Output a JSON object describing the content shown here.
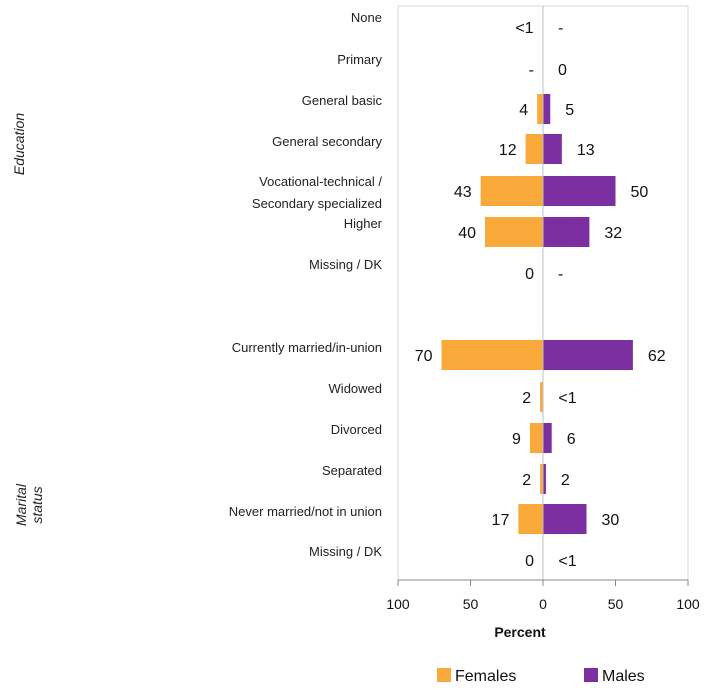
{
  "chart_data": {
    "type": "bar",
    "orientation": "horizontal-diverging",
    "xlabel": "Percent",
    "xlim": [
      -100,
      100
    ],
    "xticks": [
      {
        "value": -100,
        "label": "100"
      },
      {
        "value": -50,
        "label": "50"
      },
      {
        "value": 0,
        "label": "0"
      },
      {
        "value": 50,
        "label": "50"
      },
      {
        "value": 100,
        "label": "100"
      }
    ],
    "legend_position": "bottom-right",
    "series": [
      {
        "name": "Females",
        "color": "#F9A93A",
        "side": "left"
      },
      {
        "name": "Males",
        "color": "#7B2FA0",
        "side": "right"
      }
    ],
    "groups": [
      {
        "name": "Education",
        "rows": [
          {
            "category": "None",
            "females": 0.3,
            "females_label": "<1",
            "males": 0,
            "males_label": "-"
          },
          {
            "category": "Primary",
            "females": 0,
            "females_label": "-",
            "males": 0,
            "males_label": "0"
          },
          {
            "category": "General basic",
            "females": 4,
            "females_label": "4",
            "males": 5,
            "males_label": "5"
          },
          {
            "category": "General secondary",
            "females": 12,
            "females_label": "12",
            "males": 13,
            "males_label": "13"
          },
          {
            "category": "Vocational-technical /",
            "category_line2": "Secondary specialized",
            "females": 43,
            "females_label": "43",
            "males": 50,
            "males_label": "50"
          },
          {
            "category": "Higher",
            "females": 40,
            "females_label": "40",
            "males": 32,
            "males_label": "32"
          },
          {
            "category": "Missing / DK",
            "females": 0,
            "females_label": "0",
            "males": 0,
            "males_label": "-"
          }
        ]
      },
      {
        "name_line1": "Marital",
        "name_line2": "status",
        "rows": [
          {
            "category": "Currently married/in-union",
            "females": 70,
            "females_label": "70",
            "males": 62,
            "males_label": "62"
          },
          {
            "category": "Widowed",
            "females": 2,
            "females_label": "2",
            "males": 0.3,
            "males_label": "<1"
          },
          {
            "category": "Divorced",
            "females": 9,
            "females_label": "9",
            "males": 6,
            "males_label": "6"
          },
          {
            "category": "Separated",
            "females": 2,
            "females_label": "2",
            "males": 2,
            "males_label": "2"
          },
          {
            "category": "Never married/not in union",
            "females": 17,
            "females_label": "17",
            "males": 30,
            "males_label": "30"
          },
          {
            "category": "Missing / DK",
            "females": 0,
            "females_label": "0",
            "males": 0.3,
            "males_label": "<1"
          }
        ]
      }
    ]
  }
}
